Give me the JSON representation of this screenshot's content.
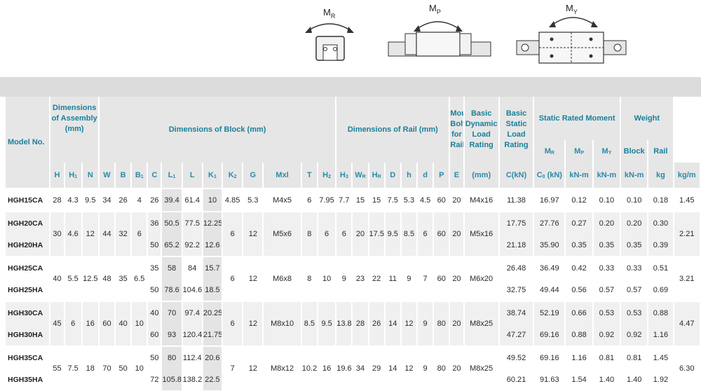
{
  "diagrams": {
    "mr": {
      "label": "M",
      "sub": "R"
    },
    "mp": {
      "label": "M",
      "sub": "P"
    },
    "my": {
      "label": "M",
      "sub": "Y"
    }
  },
  "header": {
    "model_no": "Model No.",
    "assembly": "Dimensions of Assembly (mm)",
    "block": "Dimensions of Block (mm)",
    "rail": "Dimensions of Rail (mm)",
    "bolt": "Mounting Bolt for Rail",
    "dynamic": "Basic Dynamic Load Rating",
    "static": "Basic Static Load Rating",
    "moment": "Static Rated Moment",
    "weight": "Weight",
    "block_w": "Block",
    "rail_w": "Rail",
    "mm": "(mm)",
    "ckn": "C(kN)",
    "c0": "C",
    "c0_sub": "0",
    "c0_unit": "(kN)",
    "knm": "kN-m",
    "kg": "kg",
    "kgm": "kg/m",
    "m_r": "M",
    "m_r_sub": "R",
    "m_p": "M",
    "m_p_sub": "P",
    "m_y": "M",
    "m_y_sub": "Y"
  },
  "symbols": {
    "H": "H",
    "H1": "H",
    "H1_sub": "1",
    "N": "N",
    "W": "W",
    "B": "B",
    "B1": "B",
    "B1_sub": "1",
    "C": "C",
    "L1": "L",
    "L1_sub": "1",
    "L": "L",
    "K1": "K",
    "K1_sub": "1",
    "K2": "K",
    "K2_sub": "2",
    "G": "G",
    "Mxl": "Mxl",
    "T": "T",
    "H2": "H",
    "H2_sub": "2",
    "H3": "H",
    "H3_sub": "3",
    "WR": "W",
    "WR_sub": "R",
    "HR": "H",
    "HR_sub": "R",
    "D": "D",
    "h": "h",
    "d": "d",
    "P": "P",
    "E": "E"
  },
  "rows": {
    "r1": {
      "model": "HGH15CA",
      "H": "28",
      "H1": "4.3",
      "N": "9.5",
      "W": "34",
      "B": "26",
      "B1": "4",
      "C": "26",
      "L1": "39.4",
      "L": "61.4",
      "K1": "10",
      "K2": "4.85",
      "G": "5.3",
      "Mxl": "M4x5",
      "T": "6",
      "H2": "7.95",
      "H3": "7.7",
      "WR": "15",
      "HR": "15",
      "D": "7.5",
      "h": "5.3",
      "d": "4.5",
      "P": "60",
      "E": "20",
      "bolt": "M4x16",
      "C_dyn": "11.38",
      "C0": "16.97",
      "MR": "0.12",
      "MP": "0.10",
      "MY": "0.10",
      "block_kg": "0.18",
      "rail_kgm": "1.45"
    },
    "g20": {
      "H": "30",
      "H1": "4.6",
      "N": "12",
      "W": "44",
      "B": "32",
      "B1": "6",
      "K2": "6",
      "G": "12",
      "Mxl": "M5x6",
      "T": "8",
      "H2": "6",
      "H3": "6",
      "WR": "20",
      "HR": "17.5",
      "D": "9.5",
      "h": "8.5",
      "d": "6",
      "P": "60",
      "E": "20",
      "bolt": "M5x16",
      "rail_kgm": "2.21"
    },
    "r2": {
      "model": "HGH20CA",
      "C": "36",
      "L1": "50.5",
      "L": "77.5",
      "K1": "12.25",
      "C_dyn": "17.75",
      "C0": "27.76",
      "MR": "0.27",
      "MP": "0.20",
      "MY": "0.20",
      "block_kg": "0.30"
    },
    "r3": {
      "model": "HGH20HA",
      "C": "50",
      "L1": "65.2",
      "L": "92.2",
      "K1": "12.6",
      "C_dyn": "21.18",
      "C0": "35.90",
      "MR": "0.35",
      "MP": "0.35",
      "MY": "0.35",
      "block_kg": "0.39"
    },
    "g25": {
      "H": "40",
      "H1": "5.5",
      "N": "12.5",
      "W": "48",
      "B": "35",
      "B1": "6.5",
      "K2": "6",
      "G": "12",
      "Mxl": "M6x8",
      "T": "8",
      "H2": "10",
      "H3": "9",
      "WR": "23",
      "HR": "22",
      "D": "11",
      "h": "9",
      "d": "7",
      "P": "60",
      "E": "20",
      "bolt": "M6x20",
      "rail_kgm": "3.21"
    },
    "r4": {
      "model": "HGH25CA",
      "C": "35",
      "L1": "58",
      "L": "84",
      "K1": "15.7",
      "C_dyn": "26.48",
      "C0": "36.49",
      "MR": "0.42",
      "MP": "0.33",
      "MY": "0.33",
      "block_kg": "0.51"
    },
    "r5": {
      "model": "HGH25HA",
      "C": "50",
      "L1": "78.6",
      "L": "104.6",
      "K1": "18.5",
      "C_dyn": "32.75",
      "C0": "49.44",
      "MR": "0.56",
      "MP": "0.57",
      "MY": "0.57",
      "block_kg": "0.69"
    },
    "g30": {
      "H": "45",
      "H1": "6",
      "N": "16",
      "W": "60",
      "B": "40",
      "B1": "10",
      "K2": "6",
      "G": "12",
      "Mxl": "M8x10",
      "T": "8.5",
      "H2": "9.5",
      "H3": "13.8",
      "WR": "28",
      "HR": "26",
      "D": "14",
      "h": "12",
      "d": "9",
      "P": "80",
      "E": "20",
      "bolt": "M8x25",
      "rail_kgm": "4.47"
    },
    "r6": {
      "model": "HGH30CA",
      "C": "40",
      "L1": "70",
      "L": "97.4",
      "K1": "20.25",
      "C_dyn": "38.74",
      "C0": "52.19",
      "MR": "0.66",
      "MP": "0.53",
      "MY": "0.53",
      "block_kg": "0.88"
    },
    "r7": {
      "model": "HGH30HA",
      "C": "60",
      "L1": "93",
      "L": "120.4",
      "K1": "21.75",
      "C_dyn": "47.27",
      "C0": "69.16",
      "MR": "0.88",
      "MP": "0.92",
      "MY": "0.92",
      "block_kg": "1.16"
    },
    "g35": {
      "H": "55",
      "H1": "7.5",
      "N": "18",
      "W": "70",
      "B": "50",
      "B1": "10",
      "K2": "7",
      "G": "12",
      "Mxl": "M8x12",
      "T": "10.2",
      "H2": "16",
      "H3": "19.6",
      "WR": "34",
      "HR": "29",
      "D": "14",
      "h": "12",
      "d": "9",
      "P": "80",
      "E": "20",
      "bolt": "M8x25",
      "rail_kgm": "6.30"
    },
    "r8": {
      "model": "HGH35CA",
      "C": "50",
      "L1": "80",
      "L": "112.4",
      "K1": "20.6",
      "C_dyn": "49.52",
      "C0": "69.16",
      "MR": "1.16",
      "MP": "0.81",
      "MY": "0.81",
      "block_kg": "1.45"
    },
    "r9": {
      "model": "HGH35HA",
      "C": "72",
      "L1": "105.8",
      "L": "138.2",
      "K1": "22.5",
      "C_dyn": "60.21",
      "C0": "91.63",
      "MR": "1.54",
      "MP": "1.40",
      "MY": "1.40",
      "block_kg": "1.92"
    }
  }
}
